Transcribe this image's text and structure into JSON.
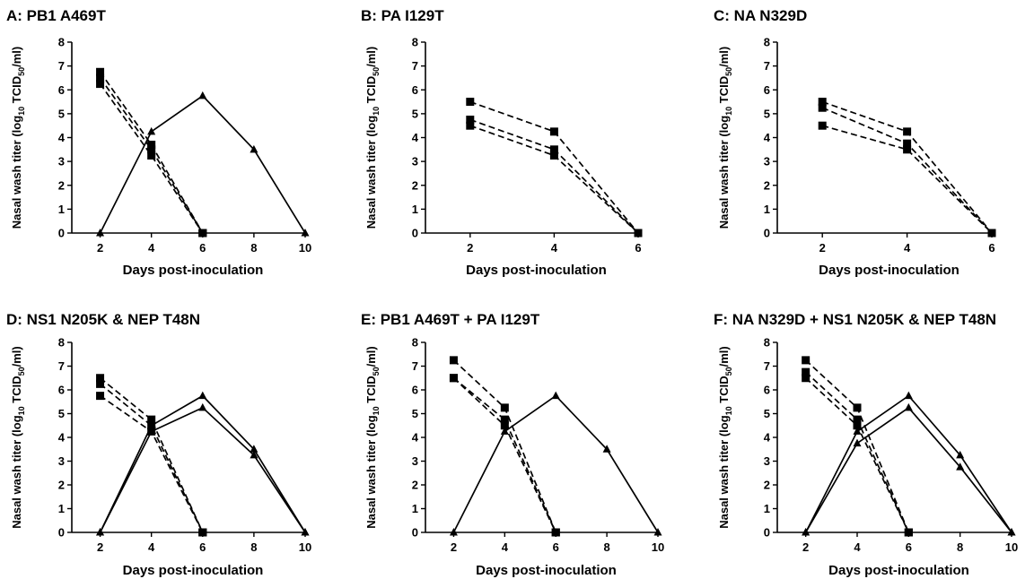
{
  "chart_data": [
    {
      "type": "line",
      "title": "A: PB1 A469T",
      "xlabel": "Days post-inoculation",
      "ylabel": {
        "main": "Nasal wash titer (log",
        "sub1": "10",
        "mid": " TCID",
        "sub2": "50",
        "end": "/ml)"
      },
      "xlim": [
        1,
        10
      ],
      "ylim": [
        0,
        8
      ],
      "xticks": [
        "2",
        "4",
        "6",
        "8",
        "10"
      ],
      "yticks": [
        "0",
        "1",
        "2",
        "3",
        "4",
        "5",
        "6",
        "7",
        "8"
      ],
      "series": [
        {
          "marker": "square",
          "dash": true,
          "x": [
            2,
            4,
            6
          ],
          "y": [
            6.75,
            3.7,
            0
          ]
        },
        {
          "marker": "square",
          "dash": true,
          "x": [
            2,
            4,
            6
          ],
          "y": [
            6.5,
            3.5,
            0
          ]
        },
        {
          "marker": "square",
          "dash": true,
          "x": [
            2,
            4,
            6
          ],
          "y": [
            6.25,
            3.25,
            0
          ]
        },
        {
          "marker": "triangle",
          "dash": false,
          "x": [
            2,
            4,
            6,
            8,
            10
          ],
          "y": [
            0,
            4.25,
            5.75,
            3.5,
            0
          ]
        }
      ]
    },
    {
      "type": "line",
      "title": "B: PA I129T",
      "xlabel": "Days post-inoculation",
      "ylabel": {
        "main": "Nasal wash titer (log",
        "sub1": "10",
        "mid": " TCID",
        "sub2": "50",
        "end": "/ml)"
      },
      "xlim": [
        1,
        6
      ],
      "ylim": [
        0,
        8
      ],
      "xticks": [
        "2",
        "4",
        "6"
      ],
      "yticks": [
        "0",
        "1",
        "2",
        "3",
        "4",
        "5",
        "6",
        "7",
        "8"
      ],
      "series": [
        {
          "marker": "square",
          "dash": true,
          "x": [
            2,
            4,
            6
          ],
          "y": [
            5.5,
            4.25,
            0
          ]
        },
        {
          "marker": "square",
          "dash": true,
          "x": [
            2,
            4,
            6
          ],
          "y": [
            4.75,
            3.5,
            0
          ]
        },
        {
          "marker": "square",
          "dash": true,
          "x": [
            2,
            4,
            6
          ],
          "y": [
            4.5,
            3.25,
            0
          ]
        }
      ]
    },
    {
      "type": "line",
      "title": "C: NA N329D",
      "xlabel": "Days post-inoculation",
      "ylabel": {
        "main": "Nasal wash titer (log",
        "sub1": "10",
        "mid": " TCID",
        "sub2": "50",
        "end": "/ml)"
      },
      "xlim": [
        1,
        6
      ],
      "ylim": [
        0,
        8
      ],
      "xticks": [
        "2",
        "4",
        "6"
      ],
      "yticks": [
        "0",
        "1",
        "2",
        "3",
        "4",
        "5",
        "6",
        "7",
        "8"
      ],
      "series": [
        {
          "marker": "square",
          "dash": true,
          "x": [
            2,
            4,
            6
          ],
          "y": [
            5.5,
            4.25,
            0
          ]
        },
        {
          "marker": "square",
          "dash": true,
          "x": [
            2,
            4,
            6
          ],
          "y": [
            5.25,
            3.75,
            0
          ]
        },
        {
          "marker": "square",
          "dash": true,
          "x": [
            2,
            4,
            6
          ],
          "y": [
            4.5,
            3.5,
            0
          ]
        }
      ]
    },
    {
      "type": "line",
      "title": "D: NS1 N205K & NEP T48N",
      "xlabel": "Days post-inoculation",
      "ylabel": {
        "main": "Nasal wash titer (log",
        "sub1": "10",
        "mid": " TCID",
        "sub2": "50",
        "end": "/ml)"
      },
      "xlim": [
        1,
        10
      ],
      "ylim": [
        0,
        8
      ],
      "xticks": [
        "2",
        "4",
        "6",
        "8",
        "10"
      ],
      "yticks": [
        "0",
        "1",
        "2",
        "3",
        "4",
        "5",
        "6",
        "7",
        "8"
      ],
      "series": [
        {
          "marker": "square",
          "dash": true,
          "x": [
            2,
            4,
            6
          ],
          "y": [
            6.5,
            4.75,
            0
          ]
        },
        {
          "marker": "square",
          "dash": true,
          "x": [
            2,
            4,
            6
          ],
          "y": [
            6.25,
            4.5,
            0
          ]
        },
        {
          "marker": "square",
          "dash": true,
          "x": [
            2,
            4,
            6
          ],
          "y": [
            5.75,
            4.25,
            0
          ]
        },
        {
          "marker": "triangle",
          "dash": false,
          "x": [
            2,
            4,
            6,
            8,
            10
          ],
          "y": [
            0,
            4.5,
            5.75,
            3.5,
            0
          ]
        },
        {
          "marker": "triangle",
          "dash": false,
          "x": [
            2,
            4,
            6,
            8,
            10
          ],
          "y": [
            0,
            4.25,
            5.25,
            3.25,
            0
          ]
        }
      ]
    },
    {
      "type": "line",
      "title": "E: PB1 A469T + PA I129T",
      "xlabel": "Days post-inoculation",
      "ylabel": {
        "main": "Nasal wash titer (log",
        "sub1": "10",
        "mid": " TCID",
        "sub2": "50",
        "end": "/ml)"
      },
      "xlim": [
        1,
        10
      ],
      "ylim": [
        0,
        8
      ],
      "xticks": [
        "2",
        "4",
        "6",
        "8",
        "10"
      ],
      "yticks": [
        "0",
        "1",
        "2",
        "3",
        "4",
        "5",
        "6",
        "7",
        "8"
      ],
      "series": [
        {
          "marker": "square",
          "dash": true,
          "x": [
            2,
            4,
            6
          ],
          "y": [
            7.25,
            5.25,
            0
          ]
        },
        {
          "marker": "square",
          "dash": true,
          "x": [
            2,
            4,
            6
          ],
          "y": [
            6.5,
            4.75,
            0
          ]
        },
        {
          "marker": "square",
          "dash": true,
          "x": [
            2,
            4,
            6
          ],
          "y": [
            6.5,
            4.5,
            0
          ]
        },
        {
          "marker": "triangle",
          "dash": false,
          "x": [
            2,
            4,
            6,
            8,
            10
          ],
          "y": [
            0,
            4.25,
            5.75,
            3.5,
            0
          ]
        }
      ]
    },
    {
      "type": "line",
      "title": "F: NA N329D + NS1 N205K & NEP T48N",
      "xlabel": "Days post-inoculation",
      "ylabel": {
        "main": "Nasal wash titer (log",
        "sub1": "10",
        "mid": " TCID",
        "sub2": "50",
        "end": "/ml)"
      },
      "xlim": [
        1,
        10
      ],
      "ylim": [
        0,
        8
      ],
      "xticks": [
        "2",
        "4",
        "6",
        "8",
        "10"
      ],
      "yticks": [
        "0",
        "1",
        "2",
        "3",
        "4",
        "5",
        "6",
        "7",
        "8"
      ],
      "series": [
        {
          "marker": "square",
          "dash": true,
          "x": [
            2,
            4,
            6
          ],
          "y": [
            7.25,
            5.25,
            0
          ]
        },
        {
          "marker": "square",
          "dash": true,
          "x": [
            2,
            4,
            6
          ],
          "y": [
            6.75,
            4.75,
            0
          ]
        },
        {
          "marker": "square",
          "dash": true,
          "x": [
            2,
            4,
            6
          ],
          "y": [
            6.5,
            4.5,
            0
          ]
        },
        {
          "marker": "triangle",
          "dash": false,
          "x": [
            2,
            4,
            6,
            8,
            10
          ],
          "y": [
            0,
            4.25,
            5.75,
            3.25,
            0
          ]
        },
        {
          "marker": "triangle",
          "dash": false,
          "x": [
            2,
            4,
            6,
            8,
            10
          ],
          "y": [
            0,
            3.75,
            5.25,
            2.75,
            0
          ]
        }
      ]
    }
  ]
}
